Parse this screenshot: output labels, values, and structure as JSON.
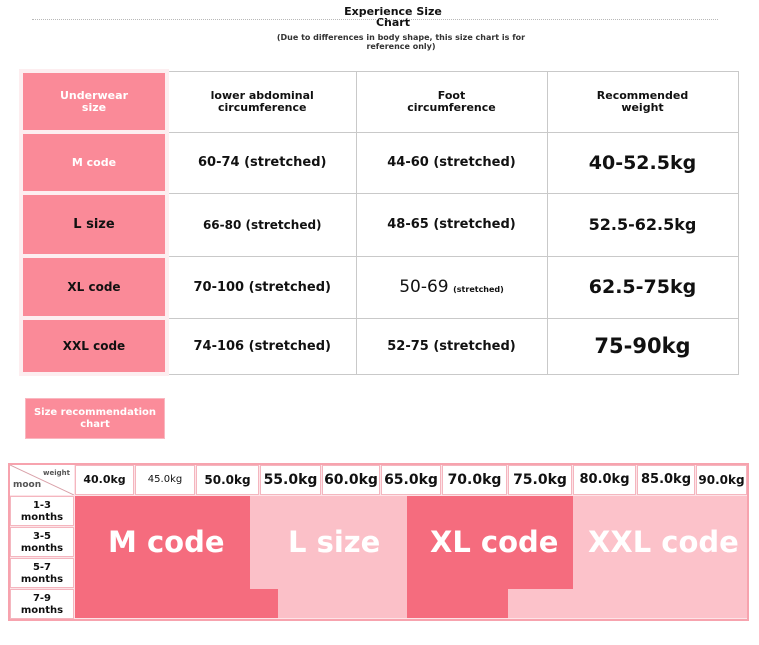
{
  "header": {
    "title_line1": "Experience Size",
    "title_line2": "Chart",
    "note_line1": "(Due to differences in body shape, this size chart is for",
    "note_line2": "reference only)"
  },
  "size_table": {
    "columns": [
      "Underwear size",
      "lower abdominal circumference",
      "Foot circumference",
      "Recommended weight"
    ],
    "column_lines": [
      [
        "Underwear",
        "size"
      ],
      [
        "lower abdominal",
        "circumference"
      ],
      [
        "Foot",
        "circumference"
      ],
      [
        "Recommended",
        "weight"
      ]
    ],
    "rows": [
      {
        "size": "M code",
        "waist": "60-74 (stretched)",
        "foot": "44-60 (stretched)",
        "weight": "40-52.5kg"
      },
      {
        "size": "L size",
        "waist": "66-80 (stretched)",
        "foot": "48-65 (stretched)",
        "weight": "52.5-62.5kg"
      },
      {
        "size": "XL code",
        "waist": "70-100 (stretched)",
        "foot_num": "50-69",
        "foot_note": "(stretched)",
        "weight": "62.5-75kg"
      },
      {
        "size": "XXL code",
        "waist": "74-106 (stretched)",
        "foot": "52-75 (stretched)",
        "weight": "75-90kg"
      }
    ]
  },
  "recommendation_tag": {
    "line1": "Size recommendation",
    "line2": "chart"
  },
  "chart": {
    "corner_weight": "weight",
    "corner_moon": "moon",
    "weights": [
      "40.0kg",
      "45.0kg",
      "50.0kg",
      "55.0kg",
      "60.0kg",
      "65.0kg",
      "70.0kg",
      "75.0kg",
      "80.0kg",
      "85.0kg",
      "90.0kg"
    ],
    "months": [
      [
        "1-3",
        "months"
      ],
      [
        "3-5",
        "months"
      ],
      [
        "5-7",
        "months"
      ],
      [
        "7-9",
        "months"
      ]
    ],
    "zones": [
      "M code",
      "L size",
      "XL code",
      "XXL code"
    ],
    "colors": {
      "m": "#f56c7e",
      "l": "#fbc0c8",
      "xl": "#f56c7e",
      "xxl": "#fcc2ca"
    }
  }
}
